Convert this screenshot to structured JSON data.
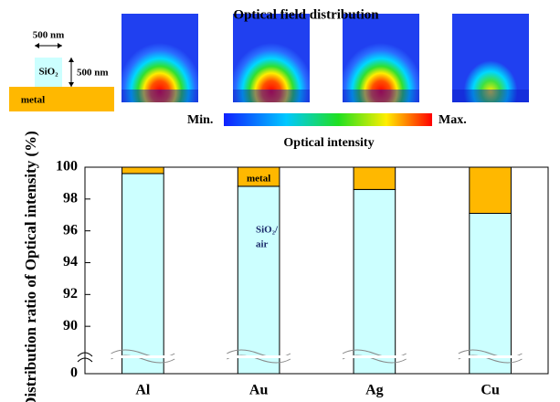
{
  "header": {
    "title": "Optical field distribution",
    "width_label": "500 nm",
    "height_label": "500 nm",
    "oxide_label": "SiO₂",
    "metal_label": "metal",
    "colorbar_min": "Min.",
    "colorbar_max": "Max.",
    "colorbar_title": "Optical intensity"
  },
  "chart_data": {
    "type": "stacked-bar",
    "ylabel": "Distribution ratio of Optical intensity (%)",
    "categories": [
      "Al",
      "Au",
      "Ag",
      "Cu"
    ],
    "series": [
      {
        "color": "#ccffff",
        "values": [
          99.6,
          98.8,
          98.6,
          97.1
        ]
      },
      {
        "color": "#ffb800",
        "values": [
          0.4,
          1.2,
          1.4,
          2.9
        ]
      }
    ],
    "ylim": [
      0,
      100
    ],
    "axis_break": [
      0,
      88
    ],
    "yticks": [
      0,
      90,
      92,
      94,
      96,
      98,
      100
    ],
    "annotations": [
      {
        "text": "metal"
      },
      {
        "lines": [
          "SiO₂/",
          "air"
        ]
      }
    ]
  }
}
